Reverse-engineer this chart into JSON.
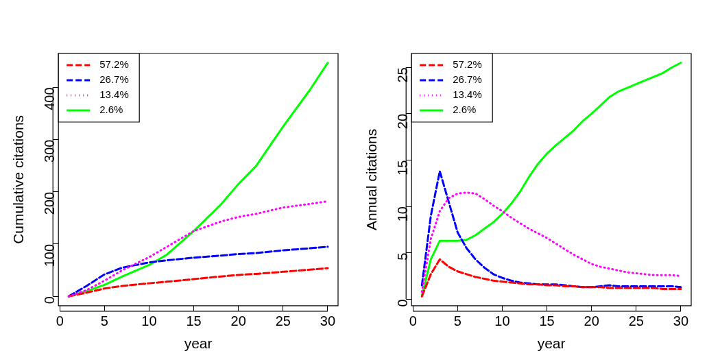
{
  "chart_data": [
    {
      "type": "line",
      "xlabel": "year",
      "ylabel": "Cumulative citations",
      "xlim": [
        -0.16,
        31.16
      ],
      "xticks": [
        0,
        5,
        10,
        15,
        20,
        25,
        30
      ],
      "ylim": [
        -17.9,
        464.9
      ],
      "yticks": [
        0,
        100,
        200,
        300,
        400
      ],
      "grid": false,
      "legend": "top left",
      "marker": "none",
      "series": [
        {
          "name": "57.2%",
          "color": "#ff0000",
          "line_style": "dashed",
          "x": [
            1,
            3,
            5,
            7,
            10,
            12,
            15,
            18,
            20,
            22,
            25,
            28,
            30
          ],
          "values": [
            0,
            7,
            15,
            20,
            25,
            28,
            33,
            38,
            41,
            43,
            47,
            51,
            54
          ]
        },
        {
          "name": "26.7%",
          "color": "#0000ff",
          "line_style": "dashed",
          "x": [
            1,
            3,
            5,
            7,
            10,
            12,
            15,
            18,
            20,
            22,
            25,
            28,
            30
          ],
          "values": [
            0,
            20,
            42,
            55,
            65,
            69,
            74,
            78,
            81,
            83,
            88,
            92,
            95
          ]
        },
        {
          "name": "13.4%",
          "color": "#ff00ff",
          "line_style": "dotted",
          "x": [
            1,
            3,
            5,
            7,
            10,
            12,
            15,
            18,
            20,
            22,
            25,
            28,
            30
          ],
          "values": [
            0,
            12,
            30,
            50,
            75,
            95,
            125,
            143,
            152,
            158,
            170,
            177,
            182
          ]
        },
        {
          "name": "2.6%",
          "color": "#00ff00",
          "line_style": "solid",
          "x": [
            1,
            3,
            5,
            7,
            10,
            12,
            15,
            18,
            20,
            22,
            25,
            28,
            30
          ],
          "values": [
            0,
            10,
            22,
            38,
            60,
            80,
            125,
            175,
            215,
            250,
            325,
            395,
            447
          ]
        }
      ]
    },
    {
      "type": "line",
      "xlabel": "year",
      "ylabel": "Annual citations",
      "xlim": [
        -0.16,
        31.16
      ],
      "xticks": [
        0,
        5,
        10,
        15,
        20,
        25,
        30
      ],
      "ylim": [
        -0.7,
        26.5
      ],
      "yticks": [
        0,
        5,
        10,
        15,
        20,
        25
      ],
      "grid": false,
      "legend": "top left",
      "marker": "none",
      "series": [
        {
          "name": "57.2%",
          "color": "#ff0000",
          "line_style": "dashed",
          "x": [
            1,
            2,
            3,
            4,
            5,
            6,
            7,
            8,
            9,
            10,
            11,
            12,
            13,
            14,
            15,
            16,
            17,
            18,
            19,
            20,
            21,
            22,
            23,
            24,
            25,
            26,
            27,
            28,
            29,
            30
          ],
          "values": [
            0.3,
            2.7,
            4.3,
            3.5,
            3.0,
            2.7,
            2.4,
            2.2,
            2.0,
            1.9,
            1.8,
            1.7,
            1.6,
            1.6,
            1.5,
            1.5,
            1.4,
            1.4,
            1.3,
            1.3,
            1.3,
            1.2,
            1.2,
            1.2,
            1.2,
            1.2,
            1.2,
            1.1,
            1.1,
            1.1
          ]
        },
        {
          "name": "26.7%",
          "color": "#0000ff",
          "line_style": "dashed",
          "x": [
            1,
            2,
            3,
            4,
            5,
            6,
            7,
            8,
            9,
            10,
            11,
            12,
            13,
            14,
            15,
            16,
            17,
            18,
            19,
            20,
            21,
            22,
            23,
            24,
            25,
            26,
            27,
            28,
            29,
            30
          ],
          "values": [
            1.5,
            9,
            13.8,
            10.5,
            7.2,
            5.5,
            4.3,
            3.4,
            2.7,
            2.3,
            2.0,
            1.8,
            1.7,
            1.6,
            1.6,
            1.6,
            1.5,
            1.4,
            1.3,
            1.3,
            1.4,
            1.5,
            1.4,
            1.4,
            1.4,
            1.4,
            1.4,
            1.4,
            1.4,
            1.3
          ]
        },
        {
          "name": "13.4%",
          "color": "#ff00ff",
          "line_style": "dotted",
          "x": [
            1,
            2,
            3,
            4,
            5,
            6,
            7,
            8,
            9,
            10,
            11,
            12,
            13,
            14,
            15,
            16,
            17,
            18,
            19,
            20,
            21,
            22,
            23,
            24,
            25,
            26,
            27,
            28,
            29,
            30
          ],
          "values": [
            0.8,
            6.5,
            9.5,
            10.9,
            11.4,
            11.5,
            11.4,
            10.8,
            10.1,
            9.5,
            8.8,
            8.2,
            7.6,
            7.1,
            6.6,
            6.0,
            5.4,
            4.8,
            4.3,
            3.8,
            3.5,
            3.3,
            3.1,
            2.9,
            2.8,
            2.7,
            2.6,
            2.6,
            2.6,
            2.5
          ]
        },
        {
          "name": "2.6%",
          "color": "#00ff00",
          "line_style": "solid",
          "x": [
            1,
            2,
            3,
            4,
            5,
            6,
            7,
            8,
            9,
            10,
            11,
            12,
            13,
            14,
            15,
            16,
            17,
            18,
            19,
            20,
            21,
            22,
            23,
            24,
            25,
            26,
            27,
            28,
            29,
            30
          ],
          "values": [
            0.4,
            4.3,
            6.3,
            6.3,
            6.3,
            6.4,
            6.9,
            7.6,
            8.3,
            9.2,
            10.3,
            11.6,
            13.2,
            14.6,
            15.7,
            16.6,
            17.4,
            18.2,
            19.2,
            20.0,
            20.9,
            21.8,
            22.4,
            22.8,
            23.2,
            23.6,
            24.0,
            24.4,
            25.0,
            25.5
          ]
        }
      ]
    }
  ]
}
